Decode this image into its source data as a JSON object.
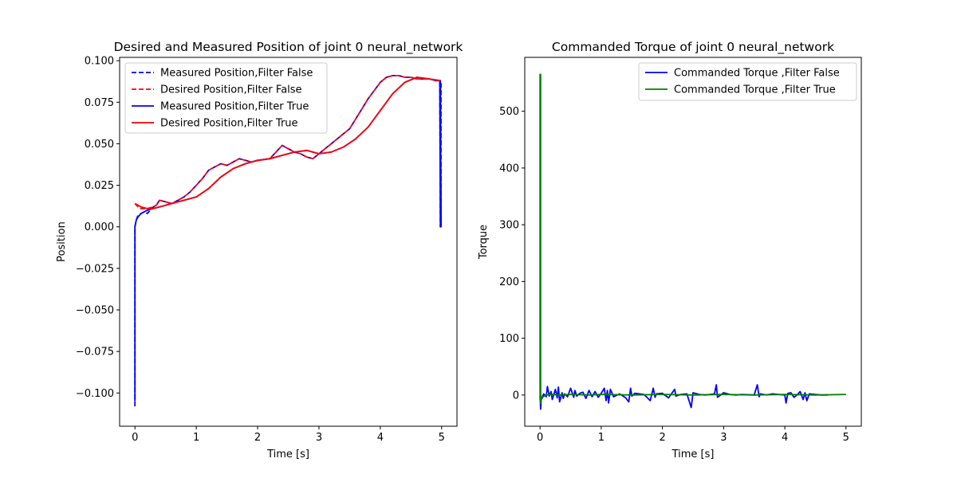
{
  "chart_data": [
    {
      "type": "line",
      "title": "Desired and Measured Position of joint 0 neural_network",
      "xlabel": "Time [s]",
      "ylabel": "Position",
      "xlim": [
        -0.25,
        5.25
      ],
      "ylim": [
        -0.12,
        0.102
      ],
      "xticks": [
        0,
        1,
        2,
        3,
        4,
        5
      ],
      "xtick_labels": [
        "0",
        "1",
        "2",
        "3",
        "4",
        "5"
      ],
      "yticks": [
        -0.1,
        -0.075,
        -0.05,
        -0.025,
        0.0,
        0.025,
        0.05,
        0.075,
        0.1
      ],
      "ytick_labels": [
        "−0.100",
        "−0.075",
        "−0.050",
        "−0.025",
        "0.000",
        "0.025",
        "0.050",
        "0.075",
        "0.100"
      ],
      "grid": false,
      "legend_position": "top-left",
      "series": [
        {
          "name": "Measured Position,Filter False",
          "color": "#0000ff",
          "dash": "dashed",
          "x": [
            0.0,
            0.0,
            0.02,
            0.05,
            0.1,
            0.15,
            0.2,
            0.3,
            0.35,
            0.4,
            0.5,
            0.6,
            0.7,
            0.8,
            0.9,
            1.0,
            1.1,
            1.2,
            1.3,
            1.4,
            1.5,
            1.6,
            1.7,
            1.8,
            1.9,
            2.0,
            2.2,
            2.3,
            2.4,
            2.5,
            2.6,
            2.7,
            2.8,
            2.9,
            3.0,
            3.1,
            3.2,
            3.3,
            3.4,
            3.5,
            3.6,
            3.7,
            3.8,
            3.9,
            4.0,
            4.1,
            4.2,
            4.3,
            4.4,
            4.5,
            4.6,
            4.7,
            4.8,
            4.9,
            4.97,
            4.98,
            4.98,
            4.99,
            4.99
          ],
          "y": [
            -0.108,
            0.0,
            0.004,
            0.007,
            0.008,
            0.009,
            0.008,
            0.012,
            0.013,
            0.016,
            0.015,
            0.014,
            0.016,
            0.018,
            0.021,
            0.025,
            0.029,
            0.034,
            0.036,
            0.038,
            0.037,
            0.039,
            0.041,
            0.04,
            0.039,
            0.04,
            0.041,
            0.045,
            0.049,
            0.047,
            0.045,
            0.044,
            0.042,
            0.041,
            0.044,
            0.047,
            0.05,
            0.053,
            0.056,
            0.059,
            0.065,
            0.071,
            0.077,
            0.082,
            0.087,
            0.09,
            0.091,
            0.091,
            0.09,
            0.09,
            0.089,
            0.089,
            0.089,
            0.088,
            0.088,
            0.0,
            0.087,
            0.0,
            0.087
          ]
        },
        {
          "name": "Desired Position,Filter False",
          "color": "#ff0000",
          "dash": "dashed",
          "x": [
            0.0,
            0.05,
            0.1,
            0.15,
            0.2,
            0.3,
            0.35,
            0.4,
            0.5,
            0.6,
            0.7,
            0.8,
            0.9,
            1.0,
            1.1,
            1.2,
            1.3,
            1.4,
            1.5,
            1.6,
            1.7,
            1.8,
            1.9,
            2.0,
            2.2,
            2.3,
            2.4,
            2.5,
            2.6,
            2.7,
            2.8,
            2.9,
            3.0,
            3.1,
            3.2,
            3.3,
            3.4,
            3.5,
            3.6,
            3.7,
            3.8,
            3.9,
            4.0,
            4.1,
            4.2,
            4.3,
            4.4,
            4.5,
            4.6,
            4.7,
            4.8,
            4.9,
            4.98
          ],
          "y": [
            0.014,
            0.012,
            0.011,
            0.011,
            0.011,
            0.012,
            0.013,
            0.016,
            0.015,
            0.014,
            0.016,
            0.018,
            0.021,
            0.025,
            0.029,
            0.034,
            0.036,
            0.038,
            0.037,
            0.039,
            0.041,
            0.04,
            0.039,
            0.04,
            0.041,
            0.045,
            0.049,
            0.047,
            0.045,
            0.044,
            0.042,
            0.041,
            0.044,
            0.047,
            0.05,
            0.053,
            0.056,
            0.059,
            0.065,
            0.071,
            0.077,
            0.082,
            0.087,
            0.09,
            0.091,
            0.091,
            0.09,
            0.09,
            0.089,
            0.089,
            0.089,
            0.088,
            0.088
          ]
        },
        {
          "name": "Measured Position,Filter True",
          "color": "#0000ff",
          "dash": "solid",
          "x": [
            0.0,
            0.0,
            0.02,
            0.05,
            0.1,
            0.2,
            0.3,
            0.4,
            0.5,
            0.6,
            0.7,
            0.8,
            0.9,
            1.0,
            1.2,
            1.4,
            1.6,
            1.8,
            2.0,
            2.2,
            2.4,
            2.6,
            2.8,
            3.0,
            3.2,
            3.4,
            3.6,
            3.8,
            4.0,
            4.2,
            4.4,
            4.6,
            4.8,
            4.97,
            4.98,
            4.98,
            4.99
          ],
          "y": [
            -0.105,
            0.0,
            0.004,
            0.006,
            0.008,
            0.01,
            0.011,
            0.012,
            0.013,
            0.014,
            0.015,
            0.016,
            0.017,
            0.018,
            0.023,
            0.03,
            0.035,
            0.038,
            0.04,
            0.041,
            0.043,
            0.045,
            0.046,
            0.044,
            0.045,
            0.048,
            0.053,
            0.06,
            0.07,
            0.08,
            0.087,
            0.09,
            0.089,
            0.088,
            0.0,
            0.088,
            0.0
          ]
        },
        {
          "name": "Desired Position,Filter True",
          "color": "#ff0000",
          "dash": "solid",
          "x": [
            0.0,
            0.05,
            0.1,
            0.2,
            0.3,
            0.4,
            0.5,
            0.6,
            0.7,
            0.8,
            0.9,
            1.0,
            1.2,
            1.4,
            1.6,
            1.8,
            2.0,
            2.2,
            2.4,
            2.6,
            2.8,
            3.0,
            3.2,
            3.4,
            3.6,
            3.8,
            4.0,
            4.2,
            4.4,
            4.6,
            4.8,
            4.98
          ],
          "y": [
            0.014,
            0.013,
            0.012,
            0.011,
            0.011,
            0.012,
            0.013,
            0.014,
            0.015,
            0.016,
            0.017,
            0.018,
            0.023,
            0.03,
            0.035,
            0.038,
            0.04,
            0.041,
            0.043,
            0.045,
            0.046,
            0.044,
            0.045,
            0.048,
            0.053,
            0.06,
            0.07,
            0.08,
            0.087,
            0.09,
            0.089,
            0.088
          ]
        }
      ]
    },
    {
      "type": "line",
      "title": "Commanded Torque of joint 0 neural_network",
      "xlabel": "Time [s]",
      "ylabel": "Torque",
      "xlim": [
        -0.25,
        5.25
      ],
      "ylim": [
        -55,
        595
      ],
      "xticks": [
        0,
        1,
        2,
        3,
        4,
        5
      ],
      "xtick_labels": [
        "0",
        "1",
        "2",
        "3",
        "4",
        "5"
      ],
      "yticks": [
        0,
        100,
        200,
        300,
        400,
        500
      ],
      "ytick_labels": [
        "0",
        "100",
        "200",
        "300",
        "400",
        "500"
      ],
      "grid": false,
      "legend_position": "top-right",
      "series": [
        {
          "name": "Commanded Torque ,Filter False",
          "color": "#0000ff",
          "dash": "solid",
          "x": [
            0.0,
            0.01,
            0.02,
            0.04,
            0.06,
            0.1,
            0.12,
            0.15,
            0.18,
            0.2,
            0.25,
            0.28,
            0.3,
            0.32,
            0.36,
            0.38,
            0.4,
            0.45,
            0.5,
            0.55,
            0.57,
            0.6,
            0.65,
            0.7,
            0.75,
            0.8,
            0.85,
            0.9,
            0.95,
            1.0,
            1.05,
            1.08,
            1.1,
            1.12,
            1.15,
            1.2,
            1.3,
            1.4,
            1.45,
            1.48,
            1.5,
            1.55,
            1.7,
            1.8,
            1.85,
            1.88,
            1.9,
            2.0,
            2.1,
            2.2,
            2.22,
            2.3,
            2.4,
            2.47,
            2.5,
            2.6,
            2.7,
            2.85,
            2.88,
            2.9,
            3.0,
            3.1,
            3.2,
            3.3,
            3.5,
            3.55,
            3.58,
            3.6,
            3.7,
            3.8,
            3.9,
            4.0,
            4.02,
            4.05,
            4.1,
            4.15,
            4.2,
            4.25,
            4.3,
            4.33,
            4.36,
            4.4,
            4.5,
            4.6,
            4.7
          ],
          "y": [
            0,
            -25,
            -8,
            -2,
            2,
            -3,
            15,
            -2,
            6,
            -8,
            10,
            -5,
            14,
            -12,
            4,
            -6,
            2,
            -3,
            12,
            -4,
            8,
            -2,
            3,
            5,
            -6,
            8,
            -3,
            6,
            -4,
            3,
            12,
            -10,
            8,
            -14,
            10,
            -3,
            2,
            -5,
            -12,
            12,
            -2,
            3,
            1,
            -10,
            12,
            -4,
            2,
            3,
            -5,
            10,
            -2,
            1,
            2,
            -22,
            4,
            1,
            0,
            2,
            18,
            -4,
            4,
            1,
            0,
            1,
            0,
            18,
            -3,
            2,
            0,
            2,
            1,
            0,
            -14,
            3,
            4,
            -4,
            0,
            6,
            -8,
            4,
            -10,
            2,
            1,
            0,
            0
          ]
        },
        {
          "name": "Commanded Torque ,Filter True",
          "color": "#008000",
          "dash": "solid",
          "x": [
            0.0,
            0.0,
            0.01,
            0.01,
            0.02,
            0.05,
            0.1,
            0.2,
            0.3,
            0.5,
            0.8,
            1.0,
            1.5,
            2.0,
            2.5,
            3.0,
            3.5,
            4.0,
            4.5,
            5.0
          ],
          "y": [
            0,
            565,
            565,
            -15,
            -8,
            -3,
            0,
            1,
            0,
            1,
            0,
            1,
            0,
            1,
            0,
            1,
            0,
            1,
            0,
            1
          ]
        }
      ]
    }
  ]
}
